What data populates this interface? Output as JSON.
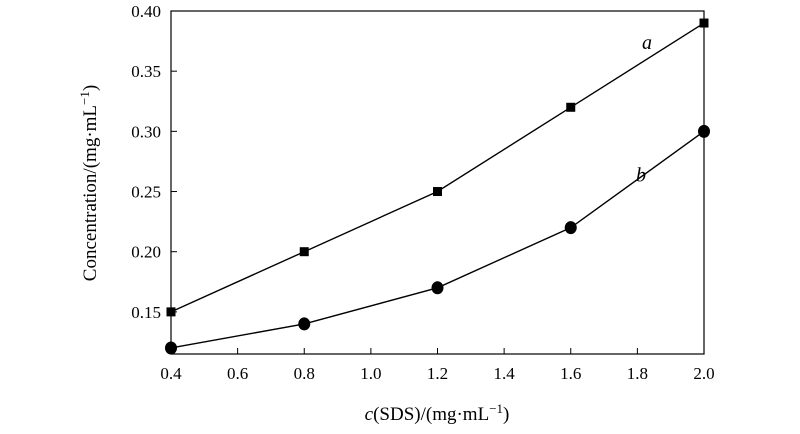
{
  "chart_data": {
    "type": "line",
    "title": "",
    "xlabel_italic": "c",
    "xlabel_rest": "(SDS)/(mg·mL",
    "xlabel_sup": "−1",
    "xlabel_close": ")",
    "ylabel_main": "Concentration/(mg·mL",
    "ylabel_sup": "−1",
    "ylabel_close": ")",
    "xlim": [
      0.4,
      2.0
    ],
    "ylim": [
      0.115,
      0.4
    ],
    "xticks": [
      "0.4",
      "0.6",
      "0.8",
      "1.0",
      "1.2",
      "1.4",
      "1.6",
      "1.8",
      "2.0"
    ],
    "yticks": [
      "0.15",
      "0.20",
      "0.25",
      "0.30",
      "0.35",
      "0.40"
    ],
    "x": [
      0.4,
      0.8,
      1.2,
      1.6,
      2.0
    ],
    "series": [
      {
        "name": "a",
        "marker": "square",
        "values": [
          0.15,
          0.2,
          0.25,
          0.32,
          0.39
        ]
      },
      {
        "name": "b",
        "marker": "circle",
        "values": [
          0.12,
          0.14,
          0.17,
          0.22,
          0.3
        ]
      }
    ],
    "grid": false,
    "legend": "inline labels near lines",
    "colors": {
      "line": "#000000",
      "marker": "#000000"
    }
  }
}
